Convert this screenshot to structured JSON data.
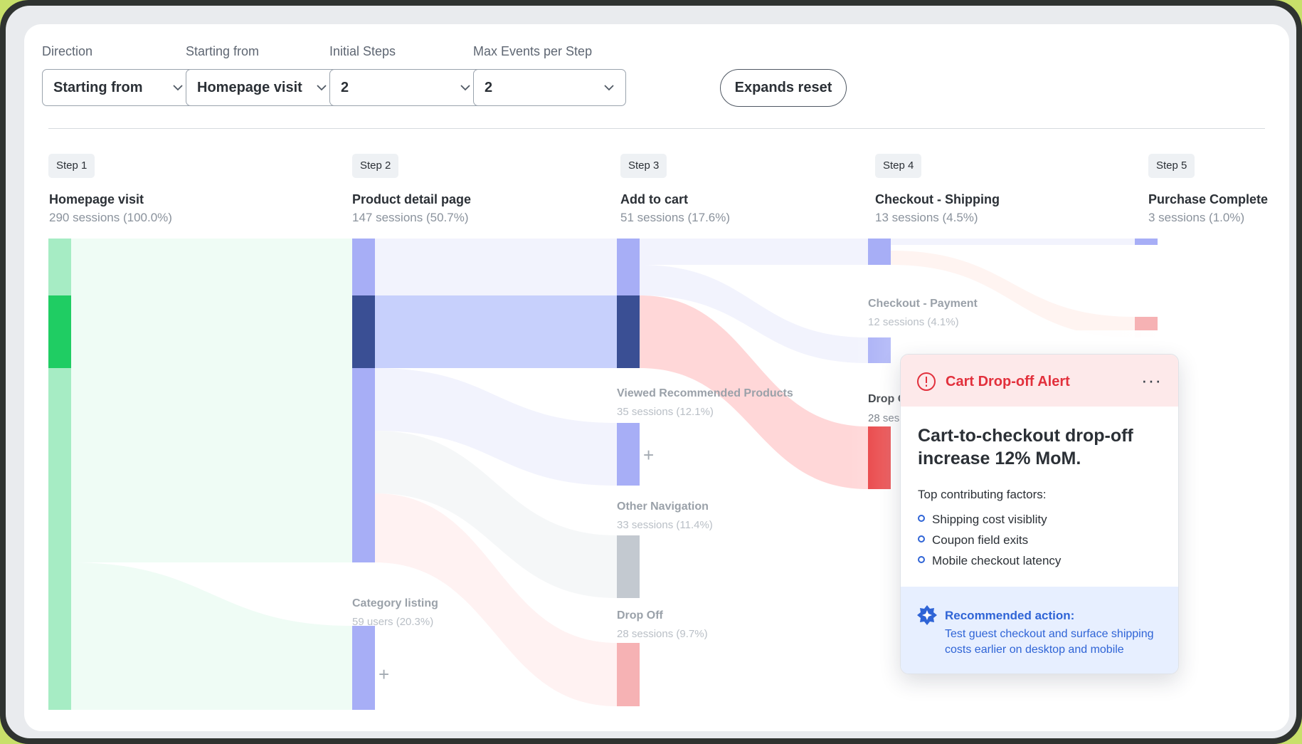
{
  "filters": [
    {
      "label": "Direction",
      "value": "Starting from"
    },
    {
      "label": "Starting from",
      "value": "Homepage visit"
    },
    {
      "label": "Initial Steps",
      "value": "2"
    },
    {
      "label": "Max Events per Step",
      "value": "2"
    }
  ],
  "reset_label": "Expands reset",
  "steps": [
    {
      "badge": "Step 1",
      "title": "Homepage visit",
      "sessions": "290 sessions (100.0%)"
    },
    {
      "badge": "Step 2",
      "title": "Product detail page",
      "sessions": "147 sessions (50.7%)"
    },
    {
      "badge": "Step 3",
      "title": "Add to cart",
      "sessions": "51 sessions (17.6%)"
    },
    {
      "badge": "Step 4",
      "title": "Checkout - Shipping",
      "sessions": "13 sessions (4.5%)"
    },
    {
      "badge": "Step 5",
      "title": "Purchase Complete",
      "sessions": "3 sessions (1.0%)"
    }
  ],
  "nodes": {
    "checkout_payment": {
      "title": "Checkout - Payment",
      "sessions": "12 sessions (4.1%)"
    },
    "viewed_recommended": {
      "title": "Viewed Recommended Products",
      "sessions": "35 sessions (12.1%)"
    },
    "other_navigation": {
      "title": "Other Navigation",
      "sessions": "33 sessions (11.4%)"
    },
    "drop_off_3": {
      "title": "Drop Off",
      "sessions": "28 sessions (9.7%)"
    },
    "category_listing": {
      "title": "Category listing",
      "sessions": "59 users (20.3%)"
    },
    "drop_off_4": {
      "title": "Drop O",
      "sessions": "28 ses"
    }
  },
  "alert": {
    "title": "Cart Drop-off Alert",
    "headline": "Cart-to-checkout drop-off increase 12% MoM.",
    "factors_label": "Top contributing factors:",
    "factors": [
      "Shipping cost visiblity",
      "Coupon field exits",
      "Mobile checkout latency"
    ],
    "recommended_title": "Recommended action:",
    "recommended_text": "Test guest checkout and surface shipping costs earlier on desktop and mobile"
  },
  "colors": {
    "green": "#a6ecc4",
    "green_highlight": "#1fcd63",
    "blue": "#a7aef6",
    "navy": "#3a4f94",
    "red": "#e83d3f",
    "pink": "#f6b2b4",
    "grey": "#c3c9d0",
    "alert_red": "#e2303c",
    "action_blue": "#2f64d6"
  }
}
